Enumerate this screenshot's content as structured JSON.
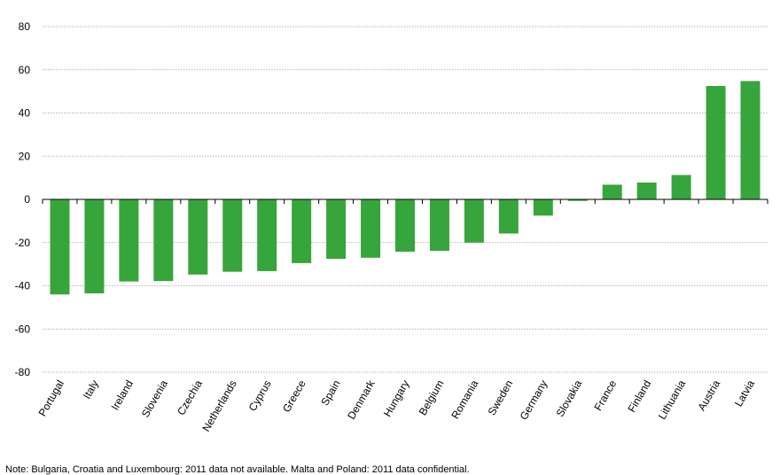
{
  "chart_data": {
    "type": "bar",
    "categories": [
      "Portugal",
      "Italy",
      "Ireland",
      "Slovenia",
      "Czechia",
      "Netherlands",
      "Cyprus",
      "Greece",
      "Spain",
      "Denmark",
      "Hungary",
      "Belgium",
      "Romania",
      "Sweden",
      "Germany",
      "Slovakia",
      "France",
      "Finland",
      "Lithuania",
      "Austria",
      "Latvia"
    ],
    "values": [
      -44.0,
      -43.5,
      -38.0,
      -37.8,
      -34.8,
      -33.5,
      -33.2,
      -29.5,
      -27.5,
      -27.0,
      -24.2,
      -23.8,
      -20.0,
      -15.8,
      -7.5,
      -0.7,
      6.8,
      7.8,
      11.3,
      52.5,
      54.8
    ],
    "title": "",
    "xlabel": "",
    "ylabel": "",
    "ylim": [
      -80,
      80
    ],
    "yticks": [
      80,
      60,
      40,
      20,
      0,
      -20,
      -40,
      -60,
      -80
    ],
    "grid": true,
    "bar_color": "#36a53c"
  },
  "note": "Note: Bulgaria, Croatia and Luxembourg: 2011 data not available. Malta and Poland: 2011 data confidential."
}
